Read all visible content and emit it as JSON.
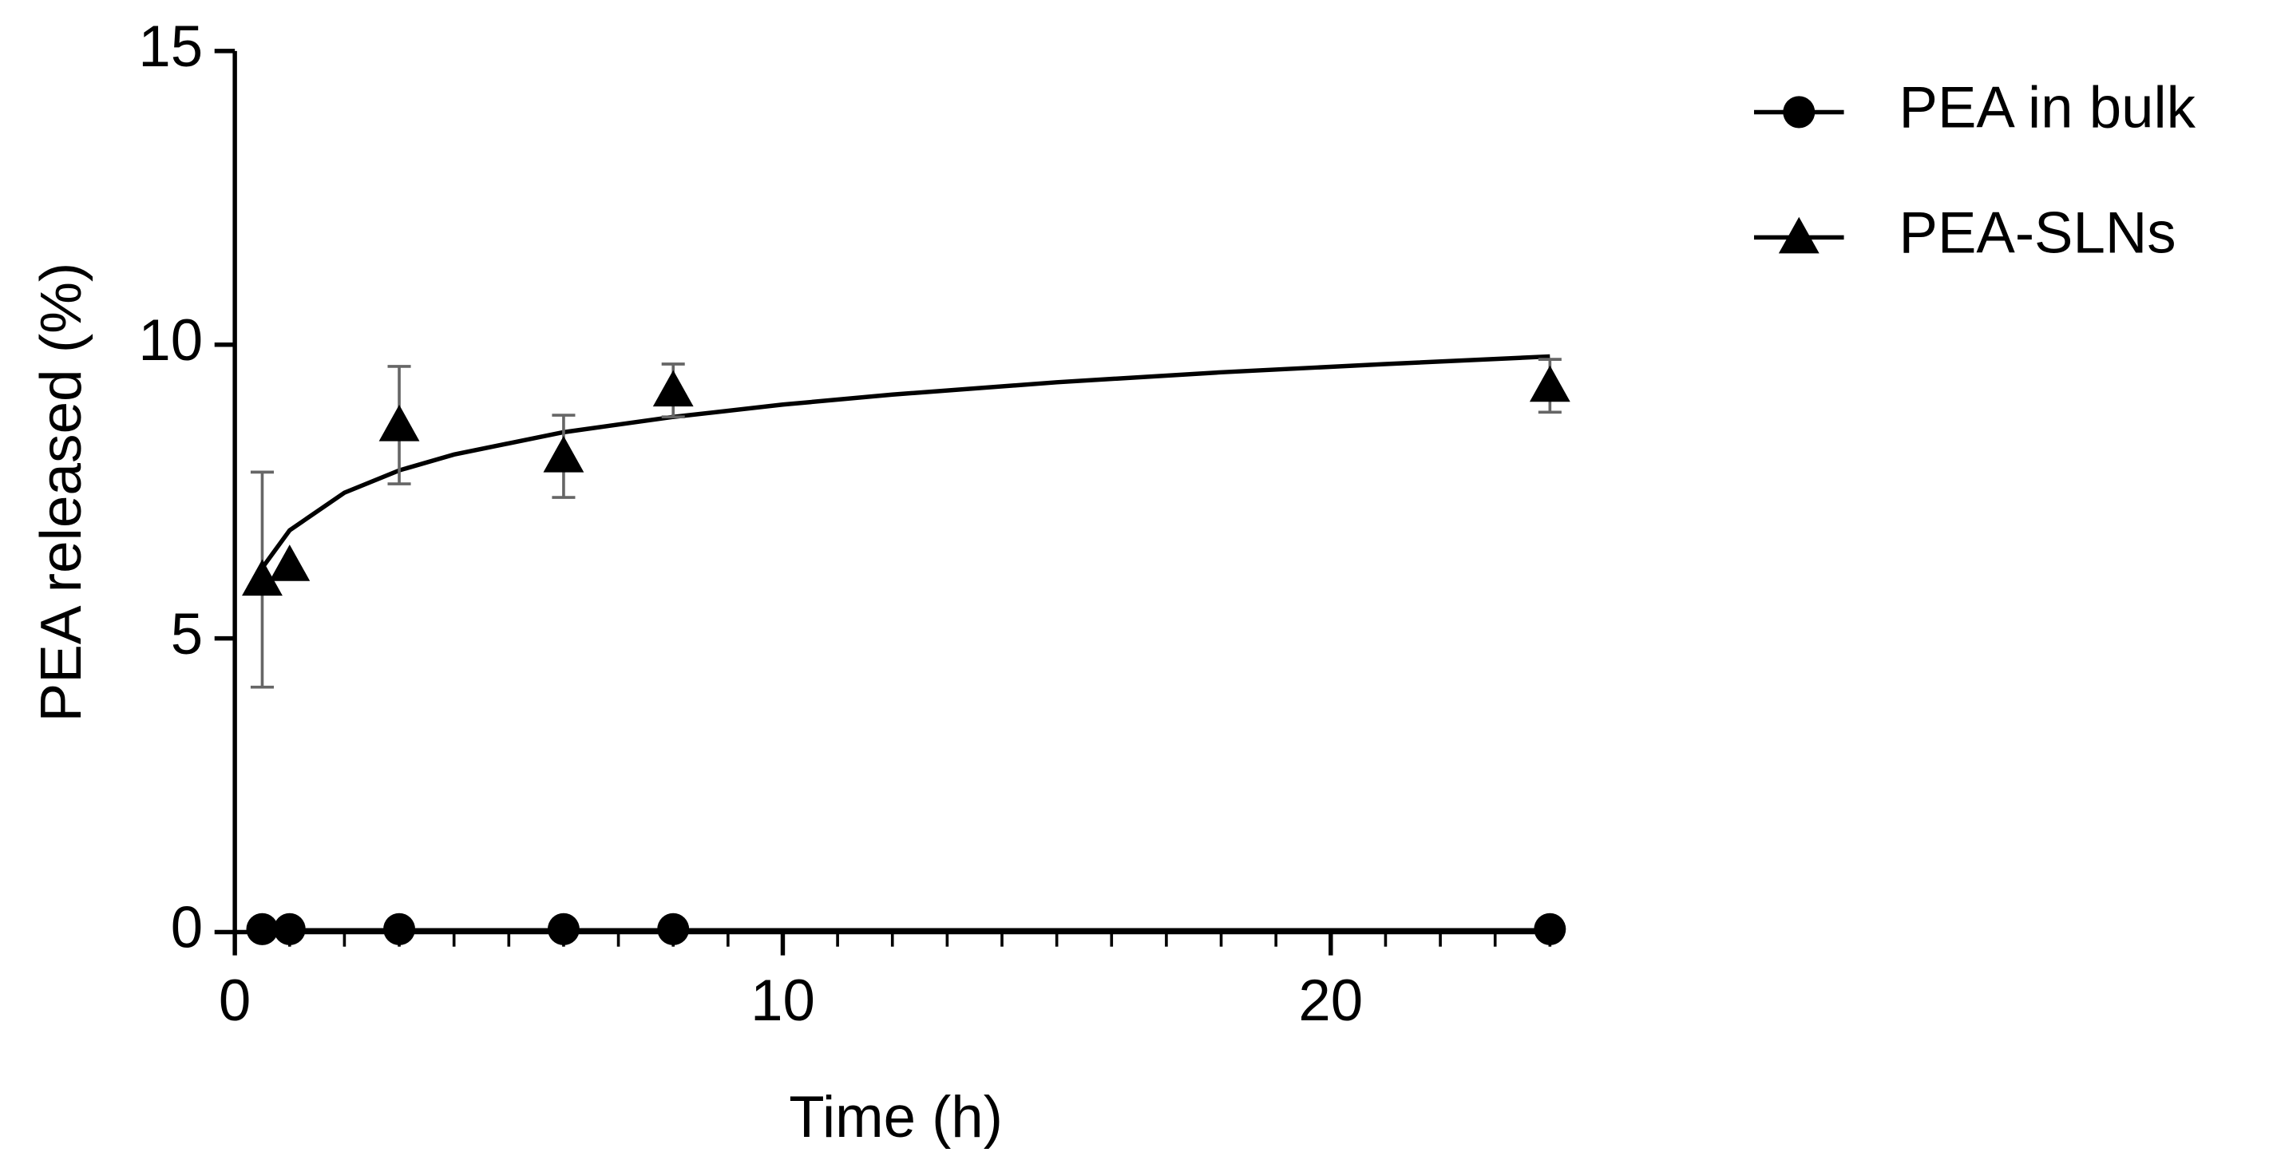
{
  "chart_data": {
    "type": "scatter",
    "xlabel": "Time (h)",
    "ylabel": "PEA released (%)",
    "x": [
      0.5,
      1,
      3,
      6,
      8,
      24
    ],
    "series": [
      {
        "name": "PEA in bulk",
        "color": "#000000",
        "marker": "circle",
        "values": [
          0.05,
          0.05,
          0.05,
          0.05,
          0.05,
          0.05
        ]
      },
      {
        "name": "PEA-SLNs",
        "color": "#000000",
        "marker": "triangle",
        "values": [
          6.0,
          6.25,
          8.63,
          8.1,
          9.22,
          9.3
        ],
        "errors": [
          1.83,
          0,
          1.0,
          0.7,
          0.45,
          0.45
        ]
      }
    ],
    "fits": [
      {
        "color": "#000000",
        "x": [
          0.5,
          24
        ],
        "values": [
          0.03,
          0.03
        ]
      },
      {
        "color": "#000000",
        "x": [
          0.5,
          1,
          2,
          3,
          4,
          6,
          8,
          10,
          12,
          15,
          18,
          21,
          24
        ],
        "values": [
          6.2,
          6.84,
          7.48,
          7.86,
          8.13,
          8.51,
          8.77,
          8.98,
          9.15,
          9.36,
          9.53,
          9.67,
          9.8
        ]
      }
    ],
    "error_color": "#666666",
    "xlim": [
      0,
      24.2
    ],
    "xticks": [
      0,
      10,
      20
    ],
    "xminorticks": [
      1,
      2,
      3,
      4,
      5,
      6,
      7,
      8,
      9,
      11,
      12,
      13,
      14,
      15,
      16,
      17,
      18,
      19,
      21,
      22,
      23,
      24
    ],
    "ylim": [
      0,
      15
    ],
    "yticks": [
      0,
      5,
      10,
      15
    ],
    "legend": "outside-right"
  }
}
